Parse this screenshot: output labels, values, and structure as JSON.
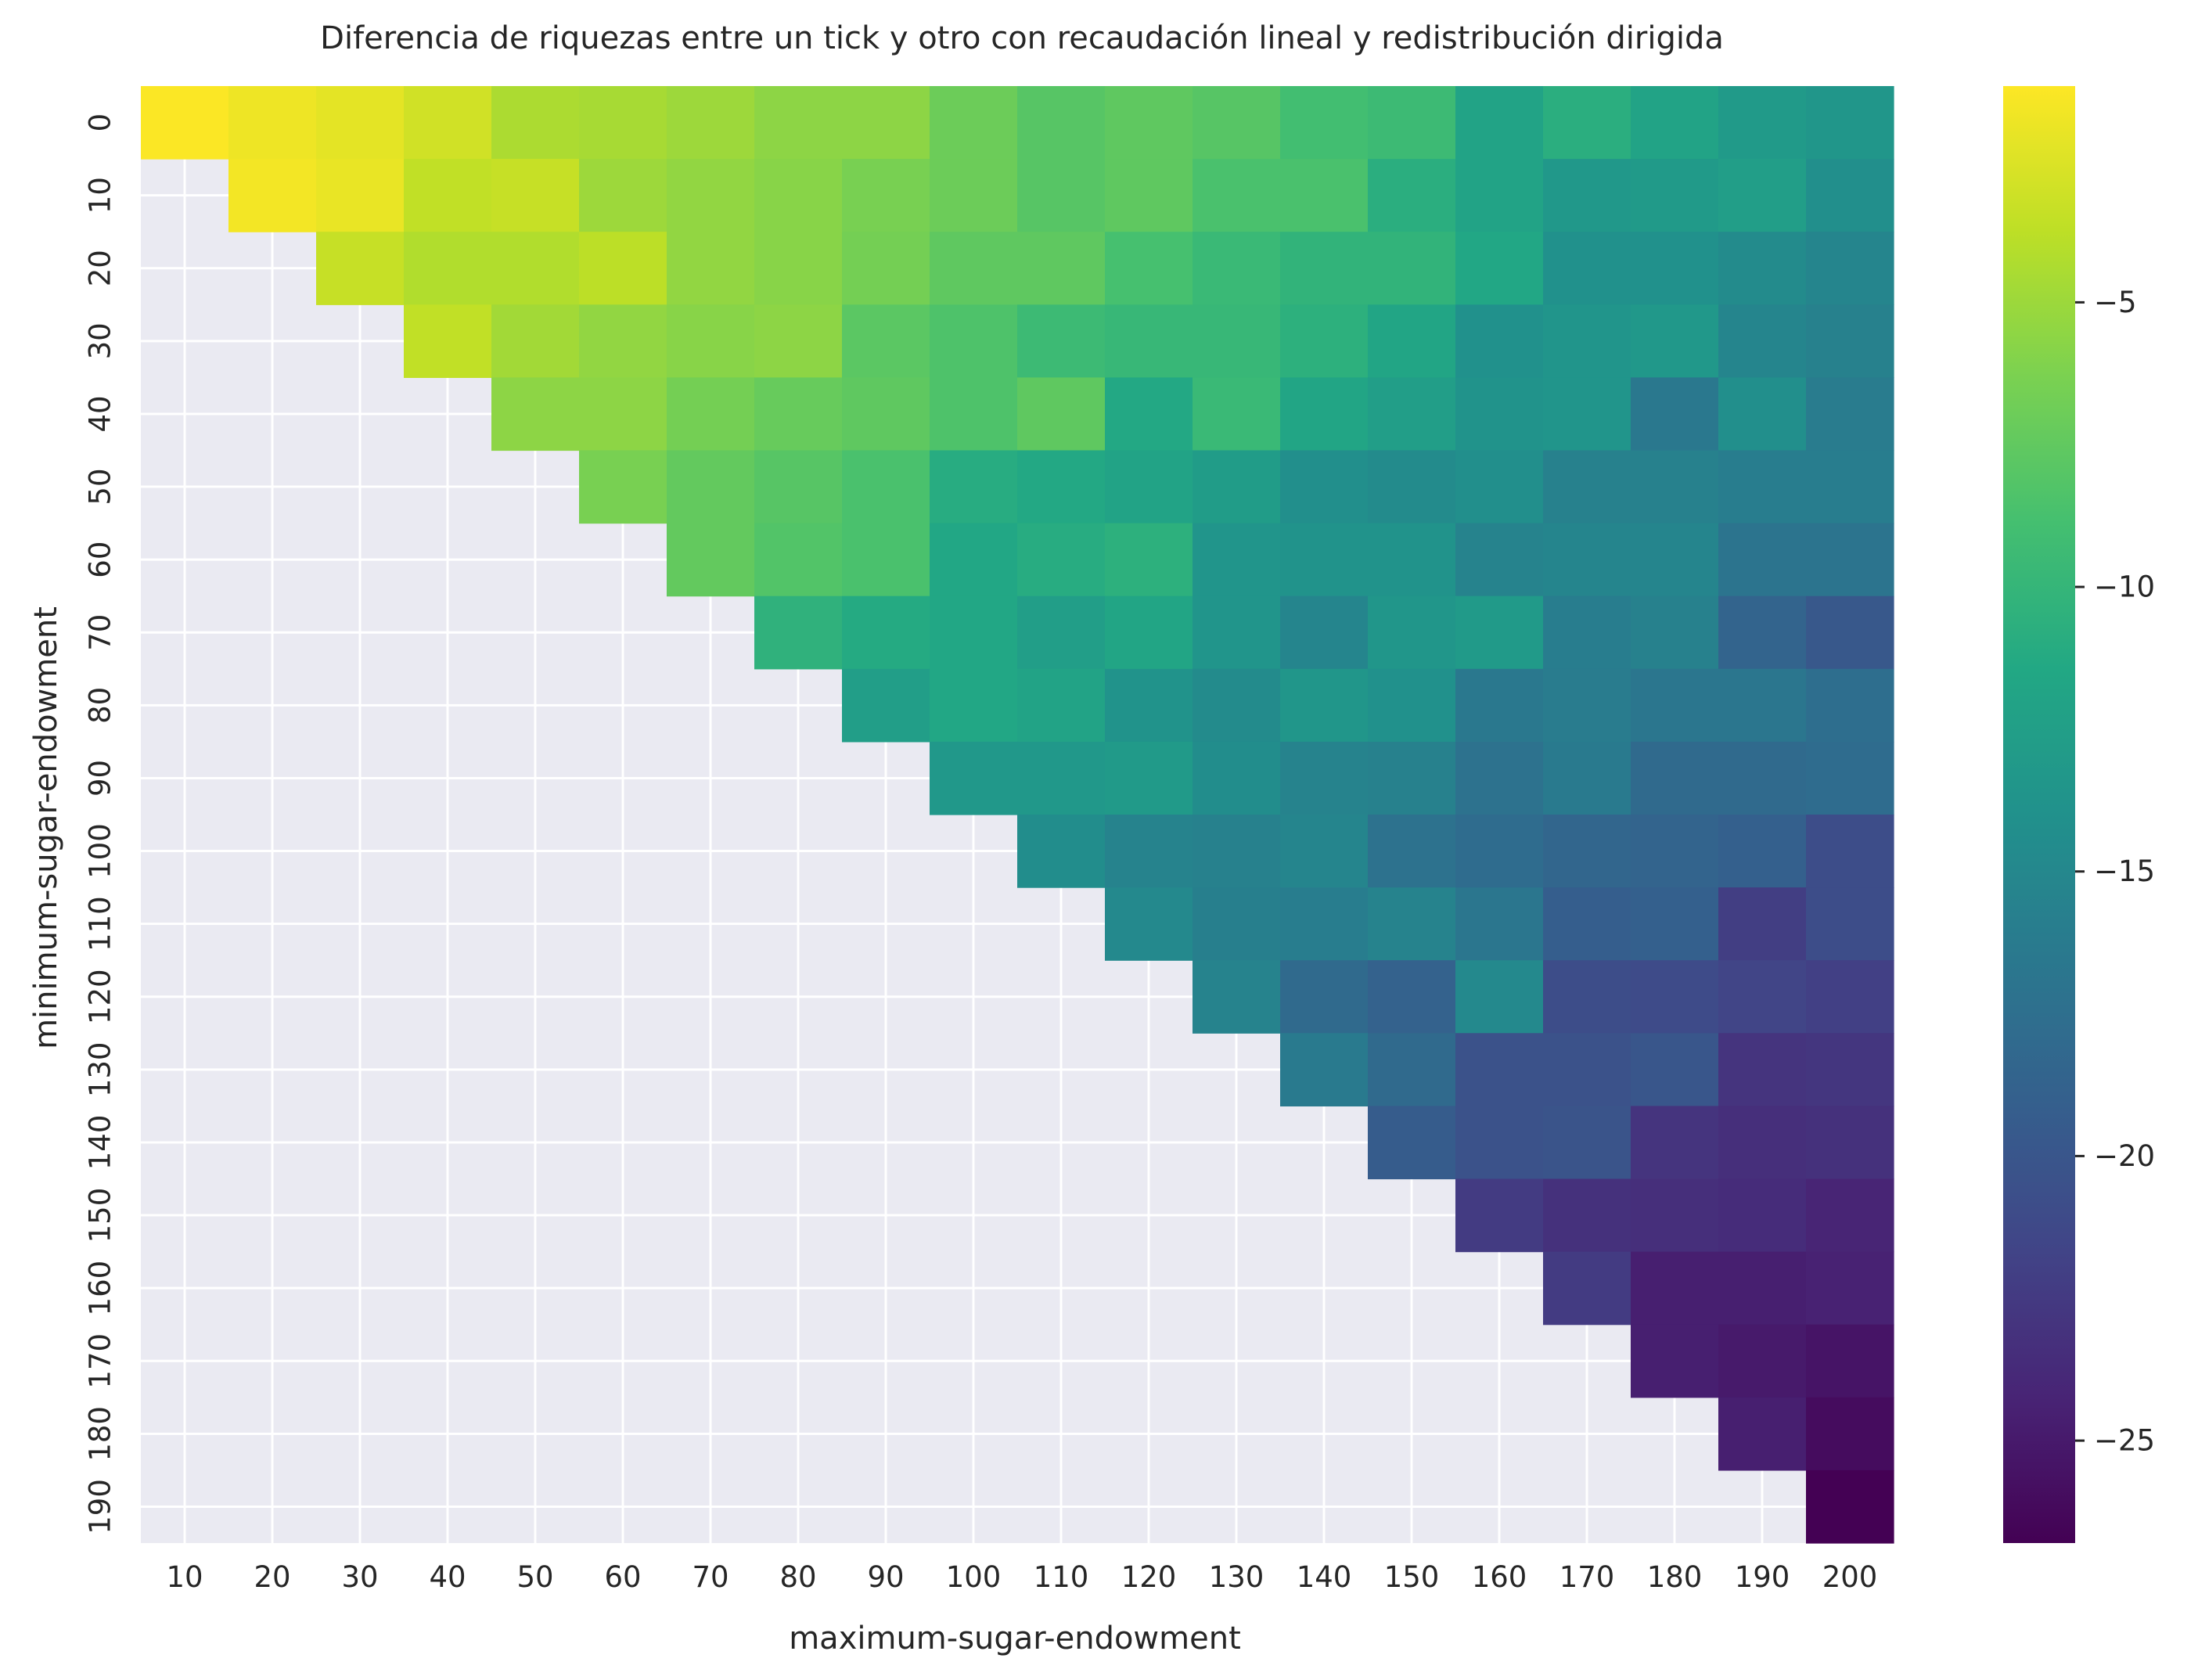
{
  "chart_data": {
    "type": "heatmap",
    "title": "Diferencia de riquezas entre un tick y otro con recaudación lineal y redistribución dirigida",
    "xlabel": "maximum-sugar-endowment",
    "ylabel": "minimum-sugar-endowment",
    "x_categories": [
      "10",
      "20",
      "30",
      "40",
      "50",
      "60",
      "70",
      "80",
      "90",
      "100",
      "110",
      "120",
      "130",
      "140",
      "150",
      "160",
      "170",
      "180",
      "190",
      "200"
    ],
    "y_categories": [
      "0",
      "10",
      "20",
      "30",
      "40",
      "50",
      "60",
      "70",
      "80",
      "90",
      "100",
      "110",
      "120",
      "130",
      "140",
      "150",
      "160",
      "170",
      "180",
      "190"
    ],
    "colormap": "viridis",
    "vmin": -26.8,
    "vmax": -1.2,
    "colorbar_ticks": [
      "−5",
      "−10",
      "−15",
      "−20",
      "−25"
    ],
    "colorbar_tick_values": [
      -5,
      -10,
      -15,
      -20,
      -25
    ],
    "grid": true,
    "background_color": "#eaeaf2",
    "values": [
      [
        -1.3,
        -1.8,
        -2.2,
        -3.0,
        -4.4,
        -4.6,
        -5.0,
        -5.6,
        -5.6,
        -7.0,
        -8.0,
        -7.6,
        -8.0,
        -9.0,
        -9.4,
        -12.0,
        -10.8,
        -12.0,
        -13.0,
        -13.4
      ],
      [
        null,
        -1.6,
        -2.0,
        -3.6,
        -3.4,
        -5.0,
        -5.4,
        -5.8,
        -6.4,
        -7.0,
        -8.0,
        -7.6,
        -8.6,
        -8.6,
        -10.8,
        -12.0,
        -13.2,
        -13.0,
        -12.6,
        -14.2
      ],
      [
        null,
        null,
        -3.4,
        -4.2,
        -4.2,
        -3.8,
        -5.4,
        -5.8,
        -6.6,
        -7.6,
        -7.6,
        -8.8,
        -9.6,
        -10.2,
        -10.2,
        -11.6,
        -14.0,
        -14.0,
        -14.6,
        -15.2
      ],
      [
        null,
        null,
        null,
        -3.6,
        -4.8,
        -5.4,
        -5.8,
        -5.6,
        -7.8,
        -8.4,
        -9.4,
        -9.8,
        -9.8,
        -10.6,
        -11.8,
        -14.0,
        -13.6,
        -13.2,
        -15.2,
        -15.6
      ],
      [
        null,
        null,
        null,
        null,
        -5.6,
        -5.6,
        -6.6,
        -7.2,
        -7.6,
        -8.4,
        -7.6,
        -11.4,
        -9.6,
        -11.8,
        -12.6,
        -13.8,
        -13.6,
        -16.6,
        -14.2,
        -16.2
      ],
      [
        null,
        null,
        null,
        null,
        null,
        -6.4,
        -7.4,
        -8.0,
        -8.6,
        -11.0,
        -11.4,
        -12.0,
        -12.8,
        -14.2,
        -14.6,
        -14.2,
        -15.6,
        -15.6,
        -16.0,
        -16.0
      ],
      [
        null,
        null,
        null,
        null,
        null,
        null,
        -7.4,
        -8.2,
        -8.6,
        -11.6,
        -11.0,
        -10.6,
        -13.6,
        -13.8,
        -13.8,
        -15.4,
        -15.2,
        -15.2,
        -17.0,
        -17.0
      ],
      [
        null,
        null,
        null,
        null,
        null,
        null,
        null,
        -10.4,
        -11.2,
        -11.6,
        -12.6,
        -11.8,
        -13.6,
        -15.2,
        -13.4,
        -13.0,
        -16.0,
        -15.6,
        -18.6,
        -19.8
      ],
      [
        null,
        null,
        null,
        null,
        null,
        null,
        null,
        null,
        -12.6,
        -11.6,
        -12.0,
        -13.8,
        -14.6,
        -13.4,
        -14.0,
        -16.6,
        -16.2,
        -16.8,
        -16.8,
        -17.6
      ],
      [
        null,
        null,
        null,
        null,
        null,
        null,
        null,
        null,
        null,
        -13.2,
        -13.2,
        -13.0,
        -14.4,
        -15.4,
        -15.6,
        -17.2,
        -16.4,
        -18.0,
        -18.0,
        -17.8
      ],
      [
        null,
        null,
        null,
        null,
        null,
        null,
        null,
        null,
        null,
        null,
        -14.4,
        -15.4,
        -15.6,
        -15.2,
        -17.2,
        -17.8,
        -18.4,
        -18.6,
        -19.0,
        -20.8
      ],
      [
        null,
        null,
        null,
        null,
        null,
        null,
        null,
        null,
        null,
        null,
        null,
        -14.8,
        -15.8,
        -16.0,
        -15.4,
        -16.8,
        -19.2,
        -19.0,
        -22.2,
        -20.8
      ],
      [
        null,
        null,
        null,
        null,
        null,
        null,
        null,
        null,
        null,
        null,
        null,
        null,
        -15.4,
        -18.0,
        -18.8,
        -14.8,
        -20.8,
        -21.0,
        -21.6,
        -22.0
      ],
      [
        null,
        null,
        null,
        null,
        null,
        null,
        null,
        null,
        null,
        null,
        null,
        null,
        null,
        -16.4,
        -18.0,
        -20.4,
        -20.4,
        -20.0,
        -23.0,
        -22.8
      ],
      [
        null,
        null,
        null,
        null,
        null,
        null,
        null,
        null,
        null,
        null,
        null,
        null,
        null,
        null,
        -19.4,
        -20.4,
        -20.2,
        -23.0,
        -23.4,
        -23.2
      ],
      [
        null,
        null,
        null,
        null,
        null,
        null,
        null,
        null,
        null,
        null,
        null,
        null,
        null,
        null,
        null,
        -22.4,
        -23.2,
        -23.4,
        -23.6,
        -24.2
      ],
      [
        null,
        null,
        null,
        null,
        null,
        null,
        null,
        null,
        null,
        null,
        null,
        null,
        null,
        null,
        null,
        null,
        -22.4,
        -24.6,
        -24.6,
        -24.4
      ],
      [
        null,
        null,
        null,
        null,
        null,
        null,
        null,
        null,
        null,
        null,
        null,
        null,
        null,
        null,
        null,
        null,
        null,
        -24.6,
        -25.0,
        -25.4
      ],
      [
        null,
        null,
        null,
        null,
        null,
        null,
        null,
        null,
        null,
        null,
        null,
        null,
        null,
        null,
        null,
        null,
        null,
        null,
        -24.6,
        -26.0
      ],
      [
        null,
        null,
        null,
        null,
        null,
        null,
        null,
        null,
        null,
        null,
        null,
        null,
        null,
        null,
        null,
        null,
        null,
        null,
        null,
        -26.8
      ]
    ]
  }
}
